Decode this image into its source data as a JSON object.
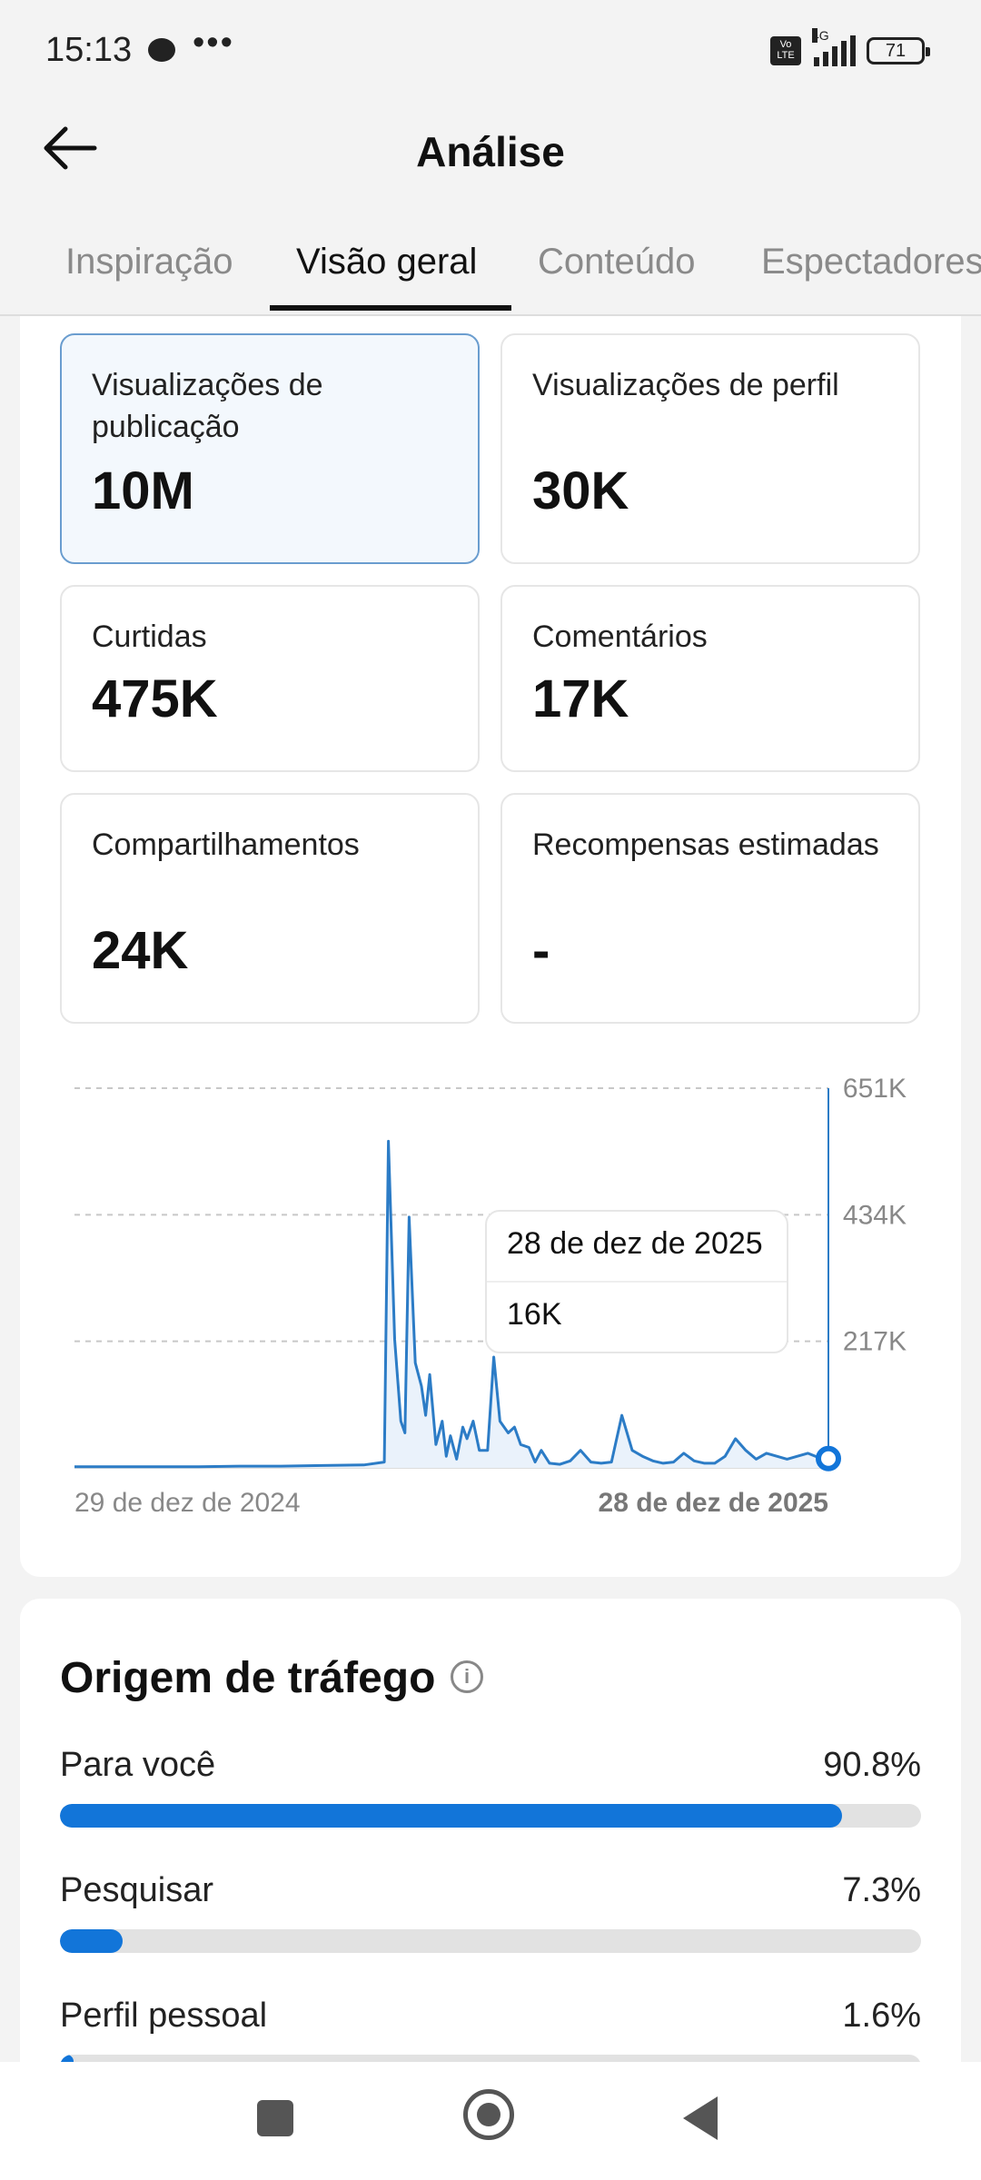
{
  "status_bar": {
    "time": "15:13",
    "volte": "Vo LTE",
    "network": "4G",
    "battery": "71"
  },
  "header": {
    "title": "Análise"
  },
  "tabs": [
    "Inspiração",
    "Visão geral",
    "Conteúdo",
    "Espectadores"
  ],
  "metrics": [
    {
      "label": "Visualizações de publicação",
      "value": "10M"
    },
    {
      "label": "Visualizações de perfil",
      "value": "30K"
    },
    {
      "label": "Curtidas",
      "value": "475K"
    },
    {
      "label": "Comentários",
      "value": "17K"
    },
    {
      "label": "Compartilhamentos",
      "value": "24K"
    },
    {
      "label": "Recompensas estimadas",
      "value": "-"
    }
  ],
  "chart_data": {
    "type": "line",
    "y_tick_labels": [
      "651K",
      "434K",
      "217K"
    ],
    "y_ticks": [
      651000,
      434000,
      217000
    ],
    "ylim": [
      0,
      651000
    ],
    "x_start_label": "29 de dez de 2024",
    "x_end_label": "28 de dez de 2025",
    "x": [
      0,
      20,
      40,
      60,
      80,
      100,
      120,
      140,
      150,
      152,
      155,
      158,
      160,
      162,
      165,
      168,
      170,
      172,
      175,
      178,
      180,
      182,
      185,
      188,
      190,
      193,
      196,
      200,
      203,
      206,
      210,
      213,
      216,
      220,
      223,
      226,
      230,
      235,
      240,
      245,
      250,
      255,
      260,
      265,
      270,
      275,
      280,
      285,
      290,
      295,
      300,
      305,
      310,
      315,
      320,
      325,
      330,
      335,
      340,
      345,
      350,
      355,
      360,
      365
    ],
    "y": [
      2000,
      2000,
      2000,
      2000,
      3000,
      3000,
      4000,
      5000,
      10000,
      560000,
      220000,
      80000,
      60000,
      430000,
      180000,
      140000,
      90000,
      160000,
      40000,
      80000,
      20000,
      55000,
      15000,
      70000,
      50000,
      80000,
      30000,
      30000,
      190000,
      80000,
      60000,
      70000,
      40000,
      35000,
      10000,
      30000,
      8000,
      6000,
      12000,
      30000,
      10000,
      8000,
      10000,
      90000,
      30000,
      20000,
      12000,
      8000,
      10000,
      25000,
      12000,
      8000,
      8000,
      20000,
      50000,
      30000,
      15000,
      25000,
      20000,
      15000,
      20000,
      25000,
      18000,
      16000
    ],
    "tooltip": {
      "date": "28 de dez de 2025",
      "value": "16K"
    }
  },
  "traffic": {
    "title": "Origem de tráfego",
    "rows": [
      {
        "label": "Para você",
        "value": "90.8%",
        "fraction": 0.908
      },
      {
        "label": "Pesquisar",
        "value": "7.3%",
        "fraction": 0.073
      },
      {
        "label": "Perfil pessoal",
        "value": "1.6%",
        "fraction": 0.016
      }
    ]
  },
  "colors": {
    "accent": "#1275d9",
    "line": "#2c7cc6"
  }
}
